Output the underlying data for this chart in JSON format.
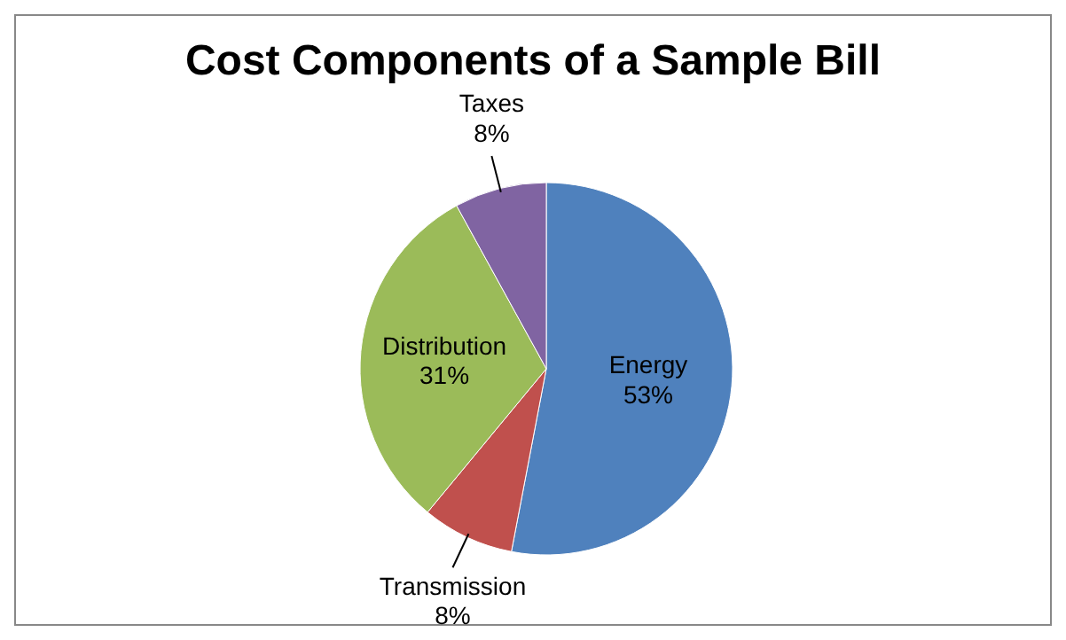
{
  "chart_data": {
    "type": "pie",
    "title": "Cost Components of a Sample Bill",
    "categories": [
      "Energy",
      "Transmission",
      "Distribution",
      "Taxes"
    ],
    "values": [
      53,
      8,
      31,
      8
    ],
    "value_labels": [
      "53%",
      "8%",
      "31%",
      "8%"
    ],
    "colors": [
      "#4f81bd",
      "#c0504d",
      "#9bbb59",
      "#8064a2"
    ]
  }
}
